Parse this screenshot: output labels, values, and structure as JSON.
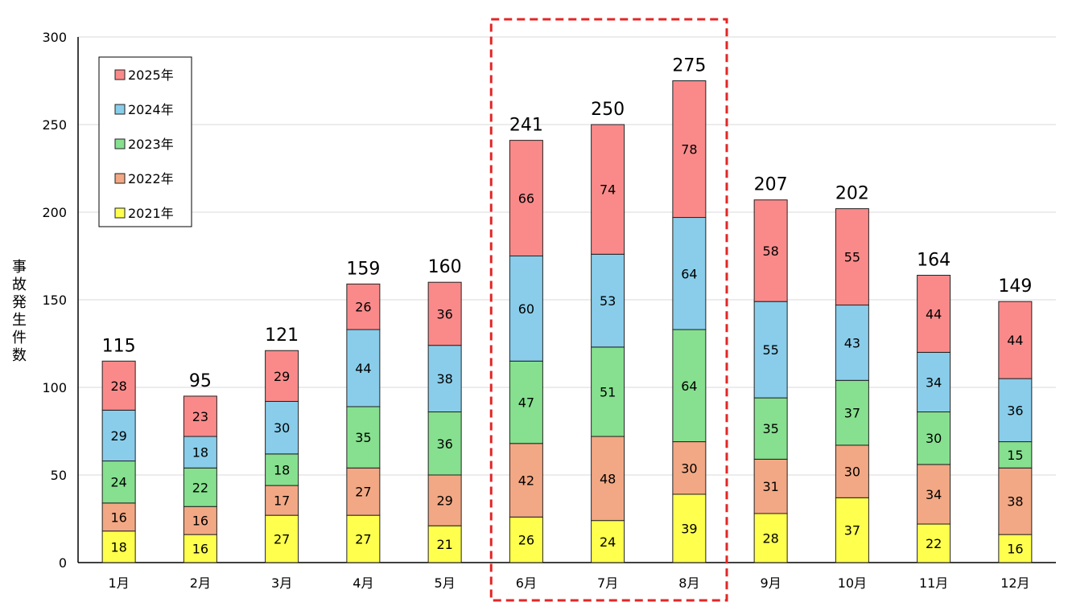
{
  "chart_data": {
    "type": "bar",
    "stacked": true,
    "categories": [
      "1月",
      "2月",
      "3月",
      "4月",
      "5月",
      "6月",
      "7月",
      "8月",
      "9月",
      "10月",
      "11月",
      "12月"
    ],
    "series": [
      {
        "name": "2021年",
        "color": "#ffff4d",
        "values": [
          18,
          16,
          27,
          27,
          21,
          26,
          24,
          39,
          28,
          37,
          22,
          16
        ]
      },
      {
        "name": "2022年",
        "color": "#f2a884",
        "values": [
          16,
          16,
          17,
          27,
          29,
          42,
          48,
          30,
          31,
          30,
          34,
          38
        ]
      },
      {
        "name": "2023年",
        "color": "#86e08f",
        "values": [
          24,
          22,
          18,
          35,
          36,
          47,
          51,
          64,
          35,
          37,
          30,
          15
        ]
      },
      {
        "name": "2024年",
        "color": "#89cdea",
        "values": [
          29,
          18,
          30,
          44,
          38,
          60,
          53,
          64,
          55,
          43,
          34,
          36
        ]
      },
      {
        "name": "2025年",
        "color": "#fa8a8a",
        "values": [
          28,
          23,
          29,
          26,
          36,
          66,
          74,
          78,
          58,
          55,
          44,
          44
        ]
      }
    ],
    "totals": [
      115,
      95,
      121,
      159,
      160,
      241,
      250,
      275,
      207,
      202,
      164,
      149
    ],
    "ylabel": "事故発生件数",
    "xlabel": "",
    "ylim": [
      0,
      300
    ],
    "yticks": [
      0,
      50,
      100,
      150,
      200,
      250,
      300
    ],
    "grid": true,
    "legend_position": "top-left",
    "highlight": {
      "categories": [
        "6月",
        "7月",
        "8月"
      ],
      "style": "red dashed box"
    }
  }
}
